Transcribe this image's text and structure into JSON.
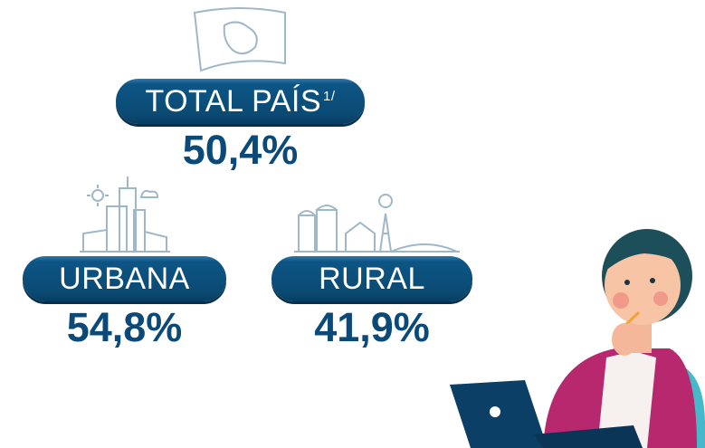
{
  "total": {
    "label": "TOTAL PAÍS",
    "note": "1/",
    "value": "50,4%"
  },
  "areas": [
    {
      "label": "URBANA",
      "value": "54,8%"
    },
    {
      "label": "RURAL",
      "value": "41,9%"
    }
  ]
}
